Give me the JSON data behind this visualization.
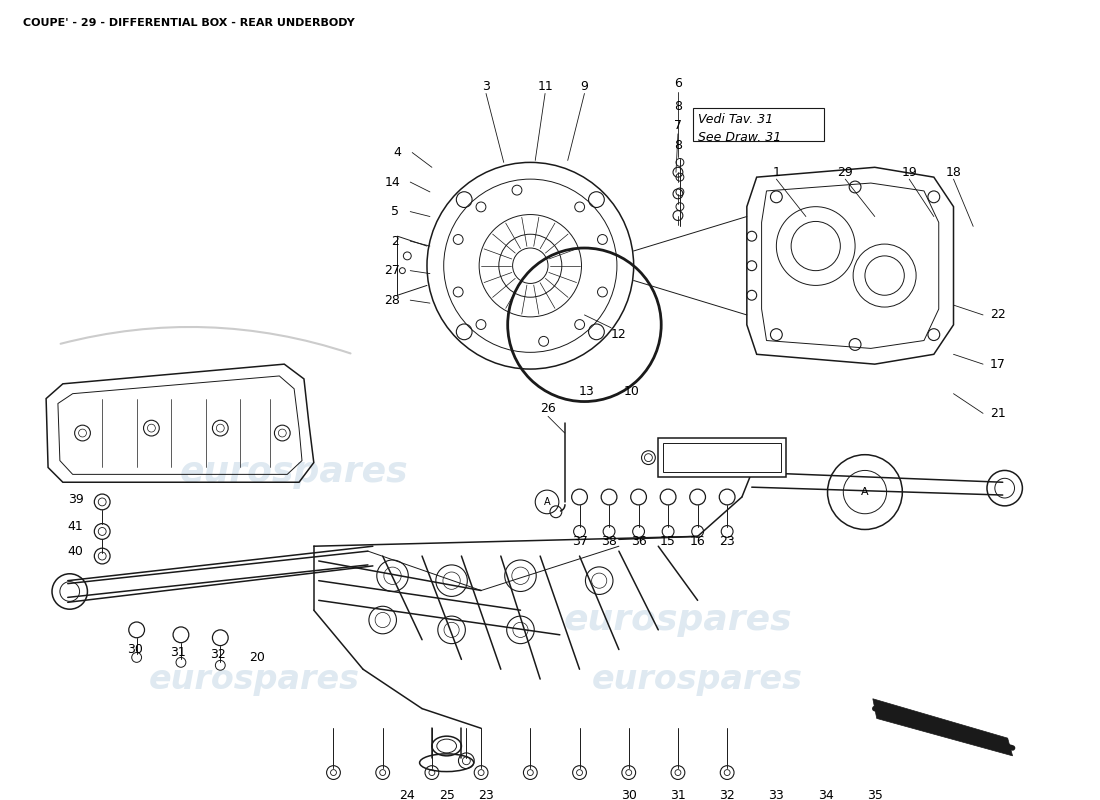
{
  "title": "COUPE' - 29 - DIFFERENTIAL BOX - REAR UNDERBODY",
  "title_fontsize": 8,
  "bg_color": "#ffffff",
  "line_color": "#1a1a1a",
  "text_color": "#000000",
  "watermark_color": "#b8cfe0",
  "watermark_alpha": 0.45,
  "vedi_tav_text": "Vedi Tav. 31",
  "see_draw_text": "See Draw. 31"
}
